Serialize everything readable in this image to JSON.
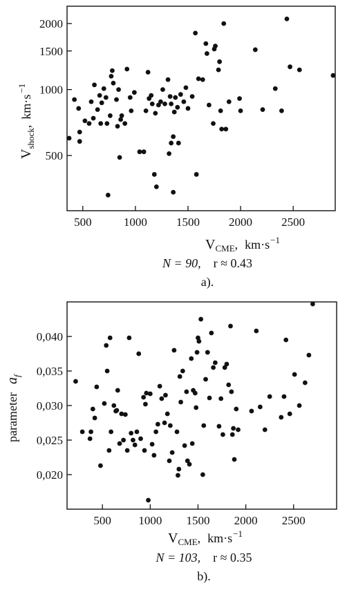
{
  "chart_data": [
    {
      "type": "scatter",
      "panel_label": "a).",
      "ylabel_main": "V",
      "ylabel_sub": "shock",
      "ylabel_unit": "km·s",
      "ylabel_exp": "−1",
      "xlabel_main": "V",
      "xlabel_sub": "CME",
      "xlabel_unit": "km·s",
      "xlabel_exp": "−1",
      "stat_n": "N = 90,",
      "stat_r": "r ≈ 0.43",
      "y_scale": "log",
      "xlim": [
        350,
        2900
      ],
      "ylim": [
        280,
        2400
      ],
      "x_ticks": [
        "500",
        "1000",
        "1500",
        "2000",
        "2500"
      ],
      "y_ticks": [
        "500",
        "1000",
        "1500",
        "2000"
      ],
      "marker_color": "#111111",
      "points": [
        [
          370,
          600
        ],
        [
          420,
          900
        ],
        [
          460,
          820
        ],
        [
          470,
          580
        ],
        [
          470,
          640
        ],
        [
          520,
          720
        ],
        [
          560,
          700
        ],
        [
          580,
          880
        ],
        [
          600,
          740
        ],
        [
          610,
          1050
        ],
        [
          640,
          810
        ],
        [
          660,
          940
        ],
        [
          670,
          700
        ],
        [
          680,
          870
        ],
        [
          700,
          1010
        ],
        [
          720,
          920
        ],
        [
          730,
          700
        ],
        [
          740,
          330
        ],
        [
          760,
          760
        ],
        [
          770,
          1150
        ],
        [
          780,
          1220
        ],
        [
          790,
          1070
        ],
        [
          820,
          900
        ],
        [
          830,
          680
        ],
        [
          840,
          1000
        ],
        [
          850,
          490
        ],
        [
          860,
          730
        ],
        [
          870,
          760
        ],
        [
          900,
          700
        ],
        [
          920,
          1240
        ],
        [
          950,
          920
        ],
        [
          960,
          800
        ],
        [
          990,
          970
        ],
        [
          1040,
          520
        ],
        [
          1080,
          520
        ],
        [
          1100,
          800
        ],
        [
          1120,
          1200
        ],
        [
          1130,
          910
        ],
        [
          1150,
          940
        ],
        [
          1160,
          860
        ],
        [
          1180,
          410
        ],
        [
          1190,
          780
        ],
        [
          1200,
          360
        ],
        [
          1220,
          850
        ],
        [
          1240,
          880
        ],
        [
          1260,
          1000
        ],
        [
          1280,
          860
        ],
        [
          1310,
          1110
        ],
        [
          1320,
          510
        ],
        [
          1330,
          930
        ],
        [
          1340,
          860
        ],
        [
          1340,
          570
        ],
        [
          1360,
          610
        ],
        [
          1360,
          340
        ],
        [
          1370,
          790
        ],
        [
          1380,
          920
        ],
        [
          1400,
          830
        ],
        [
          1410,
          570
        ],
        [
          1430,
          950
        ],
        [
          1460,
          880
        ],
        [
          1480,
          1020
        ],
        [
          1500,
          820
        ],
        [
          1540,
          930
        ],
        [
          1570,
          1810
        ],
        [
          1580,
          410
        ],
        [
          1600,
          1120
        ],
        [
          1640,
          1110
        ],
        [
          1670,
          1620
        ],
        [
          1680,
          1460
        ],
        [
          1700,
          850
        ],
        [
          1740,
          700
        ],
        [
          1750,
          1530
        ],
        [
          1760,
          1580
        ],
        [
          1790,
          1230
        ],
        [
          1800,
          1340
        ],
        [
          1810,
          800
        ],
        [
          1820,
          660
        ],
        [
          1840,
          2000
        ],
        [
          1860,
          660
        ],
        [
          1890,
          880
        ],
        [
          1990,
          910
        ],
        [
          2000,
          800
        ],
        [
          2140,
          1520
        ],
        [
          2210,
          810
        ],
        [
          2330,
          1010
        ],
        [
          2390,
          800
        ],
        [
          2440,
          2100
        ],
        [
          2470,
          1270
        ],
        [
          2560,
          1230
        ],
        [
          2880,
          1160
        ]
      ]
    },
    {
      "type": "scatter",
      "panel_label": "b).",
      "ylabel_prefix": "parameter",
      "ylabel_symbol": "a",
      "ylabel_symbol_sub": "f",
      "xlabel_main": "V",
      "xlabel_sub": "CME",
      "xlabel_unit": "km·s",
      "xlabel_exp": "−1",
      "stat_n": "N = 103,",
      "stat_r": "r ≈ 0.35",
      "xlim": [
        130,
        2950
      ],
      "ylim": [
        0.015,
        0.045
      ],
      "x_ticks": [
        "500",
        "1000",
        "1500",
        "2000",
        "2500"
      ],
      "y_ticks": [
        "0,020",
        "0,025",
        "0,030",
        "0,035",
        "0,040"
      ],
      "marker_color": "#111111",
      "points": [
        [
          220,
          0.0335
        ],
        [
          290,
          0.0262
        ],
        [
          370,
          0.0252
        ],
        [
          380,
          0.0262
        ],
        [
          400,
          0.0295
        ],
        [
          420,
          0.0282
        ],
        [
          440,
          0.0327
        ],
        [
          480,
          0.0213
        ],
        [
          520,
          0.0303
        ],
        [
          540,
          0.0387
        ],
        [
          550,
          0.035
        ],
        [
          570,
          0.0235
        ],
        [
          580,
          0.0398
        ],
        [
          590,
          0.0262
        ],
        [
          620,
          0.03
        ],
        [
          640,
          0.0292
        ],
        [
          650,
          0.0293
        ],
        [
          660,
          0.0322
        ],
        [
          680,
          0.0245
        ],
        [
          700,
          0.0288
        ],
        [
          720,
          0.025
        ],
        [
          740,
          0.0287
        ],
        [
          760,
          0.0235
        ],
        [
          780,
          0.0398
        ],
        [
          800,
          0.026
        ],
        [
          820,
          0.025
        ],
        [
          840,
          0.0243
        ],
        [
          860,
          0.0262
        ],
        [
          880,
          0.0375
        ],
        [
          900,
          0.0252
        ],
        [
          930,
          0.0312
        ],
        [
          940,
          0.0235
        ],
        [
          950,
          0.0302
        ],
        [
          960,
          0.0318
        ],
        [
          980,
          0.0163
        ],
        [
          1000,
          0.0317
        ],
        [
          1020,
          0.0244
        ],
        [
          1040,
          0.0228
        ],
        [
          1060,
          0.0262
        ],
        [
          1080,
          0.0273
        ],
        [
          1100,
          0.0328
        ],
        [
          1120,
          0.031
        ],
        [
          1150,
          0.0275
        ],
        [
          1160,
          0.0315
        ],
        [
          1180,
          0.0288
        ],
        [
          1200,
          0.022
        ],
        [
          1210,
          0.0271
        ],
        [
          1230,
          0.0232
        ],
        [
          1250,
          0.038
        ],
        [
          1280,
          0.0262
        ],
        [
          1290,
          0.0199
        ],
        [
          1300,
          0.0208
        ],
        [
          1310,
          0.0342
        ],
        [
          1320,
          0.0305
        ],
        [
          1340,
          0.035
        ],
        [
          1360,
          0.0242
        ],
        [
          1380,
          0.032
        ],
        [
          1390,
          0.022
        ],
        [
          1410,
          0.0215
        ],
        [
          1430,
          0.0368
        ],
        [
          1440,
          0.0245
        ],
        [
          1450,
          0.0322
        ],
        [
          1470,
          0.0318
        ],
        [
          1480,
          0.0297
        ],
        [
          1490,
          0.0377
        ],
        [
          1500,
          0.0398
        ],
        [
          1510,
          0.0393
        ],
        [
          1530,
          0.0425
        ],
        [
          1550,
          0.02
        ],
        [
          1560,
          0.0271
        ],
        [
          1580,
          0.0338
        ],
        [
          1600,
          0.0377
        ],
        [
          1620,
          0.0311
        ],
        [
          1640,
          0.0405
        ],
        [
          1660,
          0.0355
        ],
        [
          1680,
          0.0362
        ],
        [
          1720,
          0.027
        ],
        [
          1740,
          0.031
        ],
        [
          1760,
          0.0258
        ],
        [
          1780,
          0.0355
        ],
        [
          1800,
          0.036
        ],
        [
          1820,
          0.033
        ],
        [
          1840,
          0.0415
        ],
        [
          1850,
          0.032
        ],
        [
          1860,
          0.0258
        ],
        [
          1870,
          0.0267
        ],
        [
          1880,
          0.0222
        ],
        [
          1900,
          0.0295
        ],
        [
          1920,
          0.0265
        ],
        [
          2060,
          0.0292
        ],
        [
          2110,
          0.0408
        ],
        [
          2150,
          0.0298
        ],
        [
          2200,
          0.0265
        ],
        [
          2250,
          0.0313
        ],
        [
          2370,
          0.0283
        ],
        [
          2400,
          0.0313
        ],
        [
          2420,
          0.0395
        ],
        [
          2460,
          0.0288
        ],
        [
          2510,
          0.0345
        ],
        [
          2560,
          0.03
        ],
        [
          2620,
          0.0333
        ],
        [
          2660,
          0.0373
        ],
        [
          2700,
          0.045
        ]
      ]
    }
  ]
}
